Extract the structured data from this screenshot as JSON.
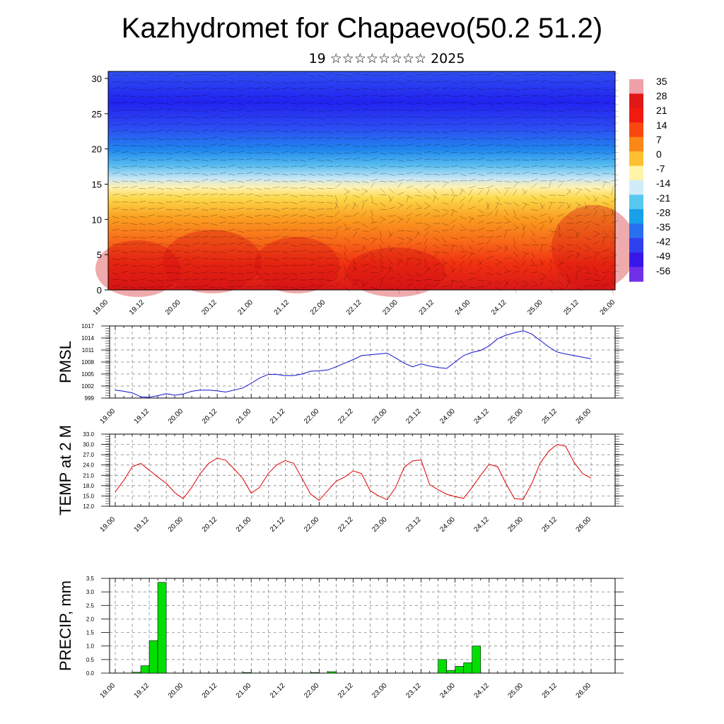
{
  "title": "Kazhydromet for Chapaevo(50.2 51.2)",
  "subtitle": "19 ☆☆☆☆☆☆☆☆ 2025",
  "time_tick_labels": [
    "19.00",
    "19.12",
    "20.00",
    "20.12",
    "21.00",
    "21.12",
    "22.00",
    "22.12",
    "23.00",
    "23.12",
    "24.00",
    "24.12",
    "25.00",
    "25.12",
    "26.00"
  ],
  "chart_data": [
    {
      "type": "heatmap",
      "title": "",
      "xlabel": "",
      "ylabel": "",
      "y_ticks": [
        0,
        5,
        10,
        15,
        20,
        25,
        30
      ],
      "ylim": [
        0,
        31
      ],
      "colorbar_labels": [
        "35",
        "28",
        "21",
        "14",
        "7",
        "0",
        "-7",
        "-14",
        "-21",
        "-28",
        "-35",
        "-42",
        "-49",
        "-56"
      ],
      "colorbar_values": [
        35,
        28,
        21,
        14,
        7,
        0,
        -7,
        -14,
        -21,
        -28,
        -35,
        -42,
        -49,
        -56
      ],
      "colorbar_colors": [
        "#f0a0a8",
        "#e01818",
        "#f01a10",
        "#f84810",
        "#fa8818",
        "#fcc030",
        "#fff4a8",
        "#d0ecf8",
        "#58c8f0",
        "#18a0e8",
        "#2870f0",
        "#3040f0",
        "#3818e8",
        "#7030e8"
      ]
    },
    {
      "type": "line",
      "ylabel": "PMSL",
      "y_tick_labels": [
        "1017",
        "1014",
        "1011",
        "1008",
        "1005",
        "1002",
        "999"
      ],
      "ylim": [
        999,
        1017
      ],
      "series": [
        {
          "color": "#1010d0",
          "x": [
            0,
            3,
            6,
            9,
            12,
            15,
            18,
            21,
            24,
            27,
            30,
            33,
            36,
            39,
            42,
            45,
            48,
            51,
            54,
            57,
            60,
            63,
            66,
            69,
            72,
            75,
            78,
            81,
            84,
            87,
            90,
            93,
            96,
            99,
            102,
            105,
            108,
            111,
            114,
            117,
            120,
            123,
            126,
            129,
            132,
            135,
            138,
            141,
            144,
            147,
            150,
            153,
            156,
            159,
            162,
            165,
            168
          ],
          "values": [
            1001.0,
            1000.7,
            1000.3,
            999.3,
            999.2,
            999.6,
            1000.1,
            999.7,
            1000.0,
            1000.7,
            1001.0,
            1001.0,
            1000.8,
            1000.5,
            1001.0,
            1001.5,
            1002.7,
            1004.0,
            1004.9,
            1004.9,
            1004.6,
            1004.6,
            1005.0,
            1005.7,
            1005.8,
            1006.0,
            1006.8,
            1007.7,
            1008.6,
            1009.6,
            1009.8,
            1010.0,
            1010.2,
            1009.0,
            1007.7,
            1006.8,
            1007.5,
            1007.0,
            1006.6,
            1006.4,
            1008.0,
            1009.6,
            1010.4,
            1010.9,
            1012.0,
            1013.8,
            1014.7,
            1015.3,
            1015.8,
            1015.0,
            1013.4,
            1011.8,
            1010.5,
            1010.0,
            1009.6,
            1009.2,
            1008.8
          ]
        }
      ]
    },
    {
      "type": "line",
      "ylabel": "TEMP at 2 M",
      "y_tick_labels": [
        "33.0",
        "30.0",
        "27.0",
        "24.0",
        "21.0",
        "18.0",
        "15.0",
        "12.0"
      ],
      "ylim": [
        12,
        33
      ],
      "series": [
        {
          "color": "#e00000",
          "x": [
            0,
            3,
            6,
            9,
            12,
            15,
            18,
            21,
            24,
            27,
            30,
            33,
            36,
            39,
            42,
            45,
            48,
            51,
            54,
            57,
            60,
            63,
            66,
            69,
            72,
            75,
            78,
            81,
            84,
            87,
            90,
            93,
            96,
            99,
            102,
            105,
            108,
            111,
            114,
            117,
            120,
            123,
            126,
            129,
            132,
            135,
            138,
            141,
            144,
            147,
            150,
            153,
            156,
            159,
            162,
            165,
            168
          ],
          "values": [
            16.2,
            19.5,
            23.5,
            24.5,
            22.5,
            20.5,
            18.7,
            16.0,
            14.2,
            17.5,
            21.5,
            24.5,
            26.0,
            25.4,
            22.8,
            20.1,
            15.8,
            17.5,
            21.5,
            24.0,
            25.3,
            24.5,
            20.0,
            15.5,
            13.7,
            16.5,
            19.3,
            20.5,
            22.3,
            21.5,
            16.5,
            15.0,
            13.9,
            17.5,
            23.3,
            25.2,
            25.5,
            18.3,
            16.8,
            15.5,
            14.8,
            14.3,
            17.5,
            21.0,
            24.2,
            23.5,
            18.5,
            14.2,
            14.0,
            18.5,
            24.5,
            28.0,
            30.0,
            29.5,
            24.8,
            21.5,
            20.2
          ]
        }
      ]
    },
    {
      "type": "bar",
      "ylabel": "PRECIP, mm",
      "y_tick_labels": [
        "3.5",
        "3.0",
        "2.5",
        "2.0",
        "1.5",
        "1.0",
        "0.5",
        "0.0"
      ],
      "ylim": [
        0,
        3.5
      ],
      "color": "#00e000",
      "bar_width_hours": 3,
      "x": [
        0,
        3,
        6,
        9,
        12,
        15,
        18,
        21,
        24,
        27,
        30,
        33,
        36,
        39,
        42,
        45,
        48,
        51,
        54,
        57,
        60,
        63,
        66,
        69,
        72,
        75,
        78,
        81,
        84,
        87,
        90,
        93,
        96,
        99,
        102,
        105,
        108,
        111,
        114,
        117,
        120,
        123,
        126,
        129,
        132,
        135,
        138,
        141,
        144,
        147,
        150,
        153,
        156,
        159,
        162,
        165,
        168
      ],
      "values": [
        0,
        0,
        0.03,
        0.27,
        1.2,
        3.35,
        0,
        0,
        0,
        0,
        0,
        0,
        0,
        0,
        0,
        0.02,
        0,
        0,
        0,
        0,
        0,
        0,
        0,
        0.02,
        0,
        0.05,
        0,
        0,
        0,
        0,
        0,
        0,
        0,
        0,
        0,
        0,
        0,
        0,
        0.5,
        0.1,
        0.25,
        0.38,
        1.0,
        0,
        0,
        0,
        0,
        0,
        0,
        0,
        0,
        0,
        0,
        0,
        0,
        0,
        0
      ]
    }
  ]
}
